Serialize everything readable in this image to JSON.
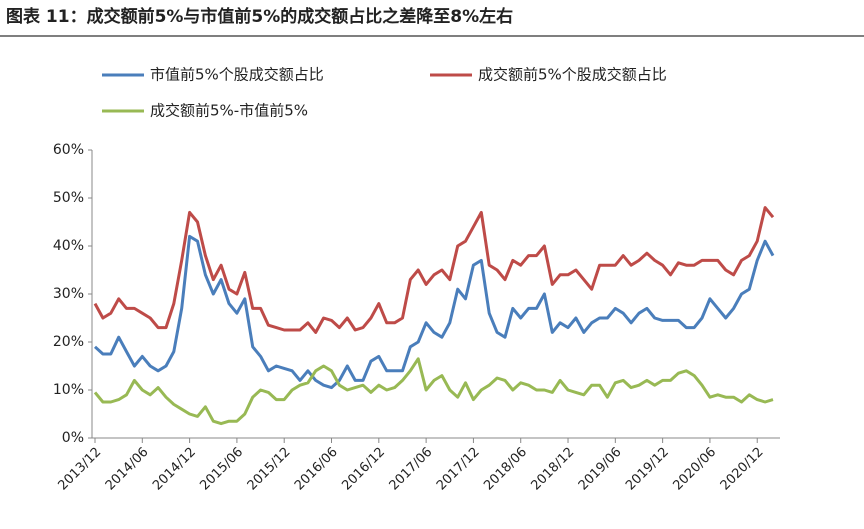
{
  "chart_data": {
    "type": "line",
    "title": "图表 11：成交额前5%与市值前5%的成交额占比之差降至8%左右",
    "categories": [
      "2013/12",
      null,
      null,
      null,
      null,
      null,
      "2014/06",
      null,
      null,
      null,
      null,
      null,
      "2014/12",
      null,
      null,
      null,
      null,
      null,
      "2015/06",
      null,
      null,
      null,
      null,
      null,
      "2015/12",
      null,
      null,
      null,
      null,
      null,
      "2016/06",
      null,
      null,
      null,
      null,
      null,
      "2016/12",
      null,
      null,
      null,
      null,
      null,
      "2017/06",
      null,
      null,
      null,
      null,
      null,
      "2017/12",
      null,
      null,
      null,
      null,
      null,
      "2018/06",
      null,
      null,
      null,
      null,
      null,
      "2018/12",
      null,
      null,
      null,
      null,
      null,
      "2019/06",
      null,
      null,
      null,
      null,
      null,
      "2019/12",
      null,
      null,
      null,
      null,
      null,
      "2020/06",
      null,
      null,
      null,
      null,
      null,
      "2020/12",
      null,
      null
    ],
    "series": [
      {
        "name": "市值前5%个股成交额占比",
        "color": "#4a7ebb",
        "values": [
          19,
          17.5,
          17.5,
          21,
          18,
          15,
          17,
          15,
          14,
          15,
          18,
          27,
          42,
          41,
          34,
          30,
          33,
          28,
          26,
          29,
          19,
          17,
          14,
          15,
          14.5,
          14,
          12,
          14,
          12,
          11,
          10.5,
          12,
          15,
          12,
          12,
          16,
          17,
          14,
          14,
          14,
          19,
          20,
          24,
          22,
          21,
          24,
          31,
          29,
          36,
          37,
          26,
          22,
          21,
          27,
          25,
          27,
          27,
          30,
          22,
          24,
          23,
          25,
          22,
          24,
          25,
          25,
          27,
          26,
          24,
          26,
          27,
          25,
          24.5,
          24.5,
          24.5,
          23,
          23,
          25,
          29,
          27,
          25,
          27,
          30,
          31,
          37,
          41,
          38
        ]
      },
      {
        "name": "成交额前5%个股成交额占比",
        "color": "#be4b48",
        "values": [
          28,
          25,
          26,
          29,
          27,
          27,
          26,
          25,
          23,
          23,
          28,
          37,
          47,
          45,
          38,
          33,
          36,
          31,
          30,
          34.5,
          27,
          27,
          23.5,
          23,
          22.5,
          22.5,
          22.5,
          24,
          22,
          25,
          24.5,
          23,
          25,
          22.5,
          23,
          25,
          28,
          24,
          24,
          25,
          33,
          35,
          32,
          34,
          35,
          33,
          40,
          41,
          44,
          47,
          36,
          35,
          33,
          37,
          36,
          38,
          38,
          40,
          32,
          34,
          34,
          35,
          33,
          31,
          36,
          36,
          36,
          38,
          36,
          37,
          38.5,
          37,
          36,
          34,
          36.5,
          36,
          36,
          37,
          37,
          37,
          35,
          34,
          37,
          38,
          41,
          48,
          46
        ]
      },
      {
        "name": "成交额前5%-市值前5%",
        "color": "#98b954",
        "values": [
          9.5,
          7.5,
          7.5,
          8,
          9,
          12,
          10,
          9,
          10.5,
          8.5,
          7,
          6,
          5,
          4.5,
          6.5,
          3.5,
          3,
          3.5,
          3.5,
          5,
          8.5,
          10,
          9.5,
          8,
          8,
          10,
          11,
          11.5,
          14,
          15,
          14,
          11,
          10,
          10.5,
          11,
          9.5,
          11,
          10,
          10.5,
          12,
          14,
          16.5,
          10,
          12,
          13,
          10,
          8.5,
          11.5,
          8,
          10,
          11,
          12.5,
          12,
          10,
          11.5,
          11,
          10,
          10,
          9.5,
          12,
          10,
          9.5,
          9,
          11,
          11,
          8.5,
          11.5,
          12,
          10.5,
          11,
          12,
          11,
          12,
          12,
          13.5,
          14,
          13,
          11,
          8.5,
          9,
          8.5,
          8.5,
          7.5,
          9,
          8,
          7.5,
          8
        ]
      }
    ],
    "ylim": [
      0,
      60
    ],
    "yticks": [
      {
        "value": 0,
        "label": "0%"
      },
      {
        "value": 10,
        "label": "10%"
      },
      {
        "value": 20,
        "label": "20%"
      },
      {
        "value": 30,
        "label": "30%"
      },
      {
        "value": 40,
        "label": "40%"
      },
      {
        "value": 50,
        "label": "50%"
      },
      {
        "value": 60,
        "label": "60%"
      }
    ]
  }
}
